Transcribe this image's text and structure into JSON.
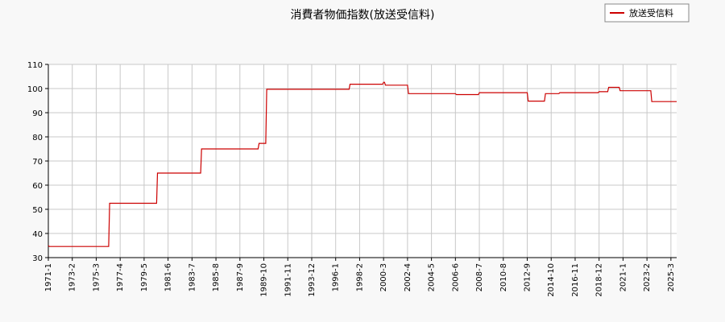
{
  "chart_data": {
    "type": "line",
    "title": "消費者物価指数(放送受信料)",
    "xlabel": "",
    "ylabel": "",
    "ylim": [
      30,
      110
    ],
    "yticks": [
      30,
      40,
      50,
      60,
      70,
      80,
      90,
      100,
      110
    ],
    "xlim": [
      "1971-01",
      "2025-09"
    ],
    "xtick_labels": [
      "1971-1",
      "1973-2",
      "1975-3",
      "1977-4",
      "1979-5",
      "1981-6",
      "1983-7",
      "1985-8",
      "1987-9",
      "1989-10",
      "1991-11",
      "1993-12",
      "1996-1",
      "1998-2",
      "2000-3",
      "2002-4",
      "2004-5",
      "2006-6",
      "2008-7",
      "2010-8",
      "2012-9",
      "2014-10",
      "2016-11",
      "2018-12",
      "2021-1",
      "2023-2",
      "2025-3"
    ],
    "grid": true,
    "legend": "top-right",
    "colors": {
      "series": "#cc0000",
      "grid": "#c8c8c8",
      "axis": "#000000",
      "background": "#ffffff",
      "page": "#f8f8f8"
    },
    "series": [
      {
        "name": "放送受信料",
        "x": [
          "1971-01",
          "1971-02",
          "1976-04",
          "1976-05",
          "1980-06",
          "1980-07",
          "1984-04",
          "1984-05",
          "1989-04",
          "1989-05",
          "1989-12",
          "1990-01",
          "1997-03",
          "1997-04",
          "2000-02",
          "2000-03",
          "2000-04",
          "2000-05",
          "2002-04",
          "2002-05",
          "2006-06",
          "2006-07",
          "2008-06",
          "2008-07",
          "2012-09",
          "2012-10",
          "2014-03",
          "2014-04",
          "2015-06",
          "2015-07",
          "2018-11",
          "2018-12",
          "2019-09",
          "2019-10",
          "2020-09",
          "2020-10",
          "2023-06",
          "2023-07",
          "2025-09"
        ],
        "values": [
          35,
          34.6,
          34.6,
          52.5,
          52.5,
          65,
          65,
          75,
          75,
          77.3,
          77.3,
          99.7,
          99.7,
          101.8,
          101.8,
          102.6,
          102.6,
          101.4,
          101.4,
          97.9,
          97.9,
          97.5,
          97.5,
          98.3,
          98.3,
          94.8,
          94.8,
          97.9,
          97.9,
          98.3,
          98.3,
          98.7,
          98.7,
          100.5,
          100.5,
          99.1,
          99.1,
          94.6,
          94.6
        ]
      }
    ]
  }
}
